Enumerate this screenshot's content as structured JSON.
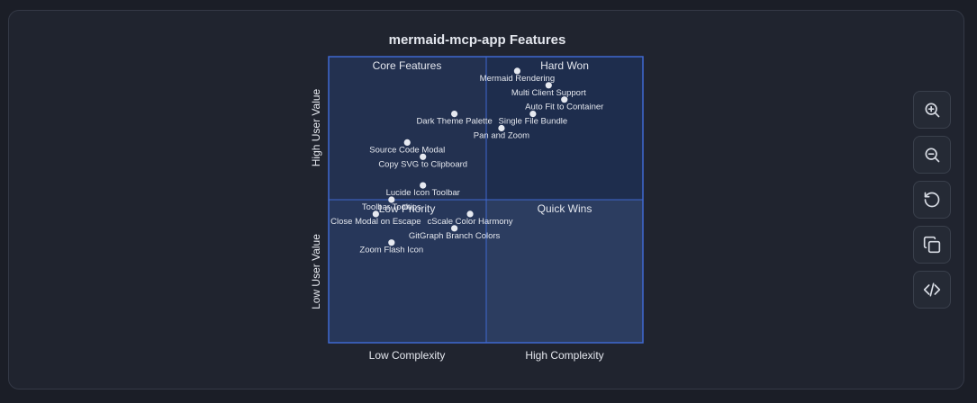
{
  "chart_data": {
    "type": "scatter",
    "title": "mermaid-mcp-app Features",
    "xlabel_low": "Low Complexity",
    "xlabel_high": "High Complexity",
    "ylabel_low": "Low User Value",
    "ylabel_high": "High User Value",
    "xlim": [
      0,
      1
    ],
    "ylim": [
      0,
      1
    ],
    "quadrants": {
      "top_left": "Core Features",
      "top_right": "Hard Won",
      "bottom_left": "Low Priority",
      "bottom_right": "Quick Wins"
    },
    "points": [
      {
        "label": "Mermaid Rendering",
        "x": 0.6,
        "y": 0.95
      },
      {
        "label": "Multi Client Support",
        "x": 0.7,
        "y": 0.9
      },
      {
        "label": "Auto Fit to Container",
        "x": 0.75,
        "y": 0.85
      },
      {
        "label": "Single File Bundle",
        "x": 0.65,
        "y": 0.8
      },
      {
        "label": "Dark Theme Palette",
        "x": 0.4,
        "y": 0.8
      },
      {
        "label": "Pan and Zoom",
        "x": 0.55,
        "y": 0.75
      },
      {
        "label": "Source Code Modal",
        "x": 0.25,
        "y": 0.7
      },
      {
        "label": "Copy SVG to Clipboard",
        "x": 0.3,
        "y": 0.65
      },
      {
        "label": "Lucide Icon Toolbar",
        "x": 0.3,
        "y": 0.55
      },
      {
        "label": "Toolbar Tooltips",
        "x": 0.2,
        "y": 0.5
      },
      {
        "label": "Close Modal on Escape",
        "x": 0.15,
        "y": 0.45
      },
      {
        "label": "cScale Color Harmony",
        "x": 0.45,
        "y": 0.45
      },
      {
        "label": "GitGraph Branch Colors",
        "x": 0.4,
        "y": 0.4
      },
      {
        "label": "Zoom Flash Icon",
        "x": 0.2,
        "y": 0.35
      }
    ]
  },
  "colors": {
    "q_top_left": "#233150",
    "q_top_right": "#1e2d4d",
    "q_bottom_left": "#27375a",
    "q_bottom_right": "#2c3d60",
    "border": "#3f68d0",
    "point": "#e6e9f0",
    "text": "#e4e7ee"
  },
  "toolbar": {
    "buttons": [
      {
        "name": "zoom-in",
        "icon": "zoom-in-icon"
      },
      {
        "name": "zoom-out",
        "icon": "zoom-out-icon"
      },
      {
        "name": "reset",
        "icon": "reset-icon"
      },
      {
        "name": "copy",
        "icon": "copy-icon"
      },
      {
        "name": "code",
        "icon": "code-icon"
      }
    ]
  }
}
